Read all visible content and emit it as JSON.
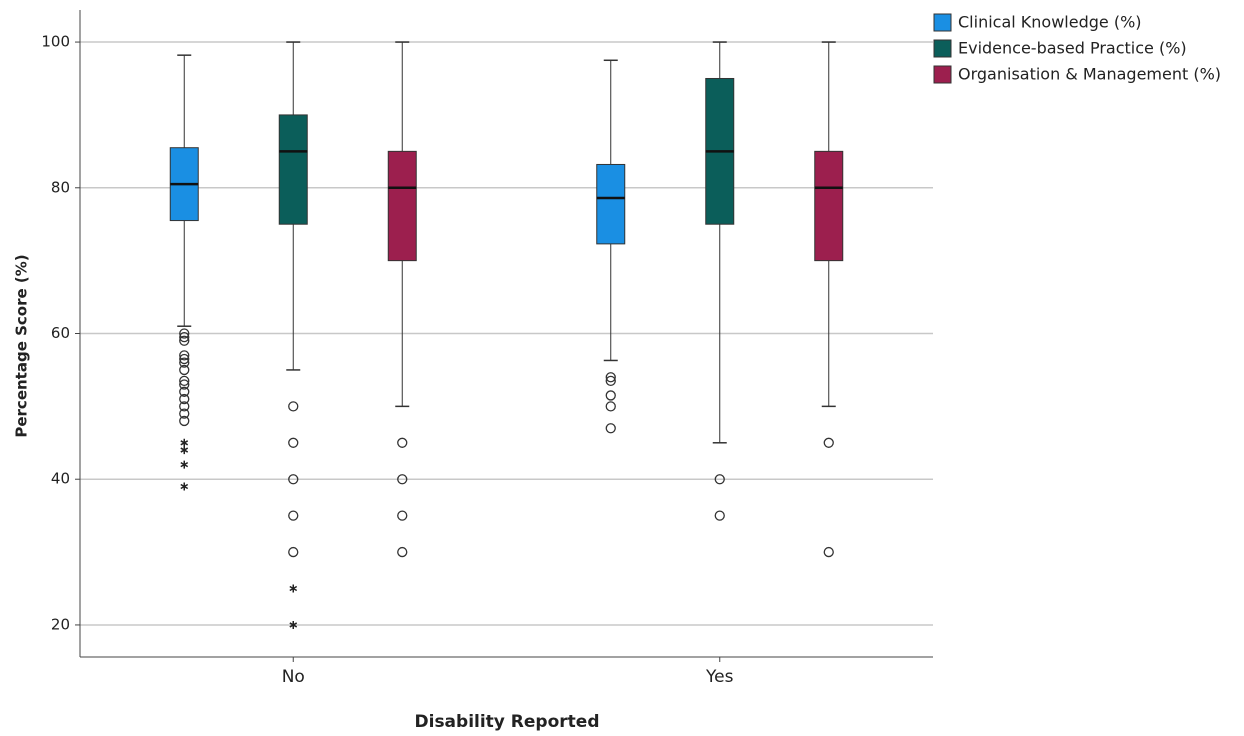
{
  "chart_data": {
    "type": "box",
    "x_label": "Disability Reported",
    "y_label": "Percentage Score (%)",
    "categories": [
      "No",
      "Yes"
    ],
    "ylim": [
      15.6,
      104.4
    ],
    "yticks": [
      20,
      40,
      60,
      80,
      100
    ],
    "grid": true,
    "legend": "top-right",
    "series": [
      {
        "name": "Clinical Knowledge (%)",
        "color": "#1a8fe3",
        "boxes": [
          {
            "min": 61,
            "q1": 75.5,
            "median": 80.5,
            "q3": 85.5,
            "max": 98.2,
            "outliers": [
              60,
              59.5,
              59,
              57,
              56.5,
              56,
              55,
              53.5,
              53,
              52,
              51,
              50,
              49,
              48
            ],
            "extremes": [
              45,
              44,
              42,
              39
            ]
          },
          {
            "min": 56.3,
            "q1": 72.3,
            "median": 78.6,
            "q3": 83.2,
            "max": 97.5,
            "outliers": [
              54,
              53.5,
              51.5,
              50,
              47
            ],
            "extremes": []
          }
        ]
      },
      {
        "name": "Evidence-based Practice (%)",
        "color": "#0b5e5a",
        "boxes": [
          {
            "min": 55,
            "q1": 75,
            "median": 85,
            "q3": 90,
            "max": 100,
            "outliers": [
              50,
              45,
              40,
              35,
              30
            ],
            "extremes": [
              25,
              20
            ]
          },
          {
            "min": 45,
            "q1": 75,
            "median": 85,
            "q3": 95,
            "max": 100,
            "outliers": [
              40,
              35
            ],
            "extremes": []
          }
        ]
      },
      {
        "name": "Organisation & Management (%)",
        "color": "#9c1f4e",
        "boxes": [
          {
            "min": 50,
            "q1": 70,
            "median": 80,
            "q3": 85,
            "max": 100,
            "outliers": [
              45,
              40,
              35,
              30
            ],
            "extremes": []
          },
          {
            "min": 50,
            "q1": 70,
            "median": 80,
            "q3": 85,
            "max": 100,
            "outliers": [
              45,
              30
            ],
            "extremes": []
          }
        ]
      }
    ]
  }
}
